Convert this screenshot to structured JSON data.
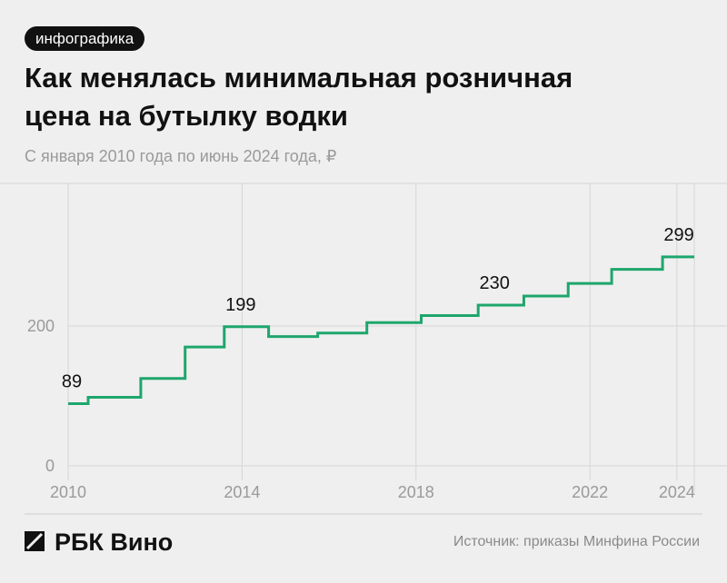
{
  "tag": "инфографика",
  "chart_data": {
    "type": "step",
    "title": [
      "Как менялась минимальная розничная",
      "цена на бутылку водки"
    ],
    "subtitle": "С января 2010 года по июнь 2024 года, ₽",
    "x": [
      2010,
      2010.46,
      2011.67,
      2012.69,
      2013.59,
      2014.61,
      2015.74,
      2016.87,
      2018.12,
      2019.43,
      2020.48,
      2021.5,
      2022.5,
      2023.67,
      2024.4
    ],
    "values": [
      89,
      98,
      125,
      170,
      199,
      185,
      190,
      205,
      215,
      230,
      243,
      261,
      281,
      299,
      299
    ],
    "labeled_indices": [
      0,
      4,
      9,
      13
    ],
    "color": "#1ea66c",
    "xlim": [
      2010,
      2024.4
    ],
    "ylim": [
      0,
      404
    ],
    "xticks": [
      2010,
      2014,
      2018,
      2022,
      2024
    ],
    "yticks": [
      0,
      200
    ],
    "grid": true
  },
  "footer": {
    "brand": "РБК Вино",
    "source": "Источник: приказы Минфина России"
  }
}
